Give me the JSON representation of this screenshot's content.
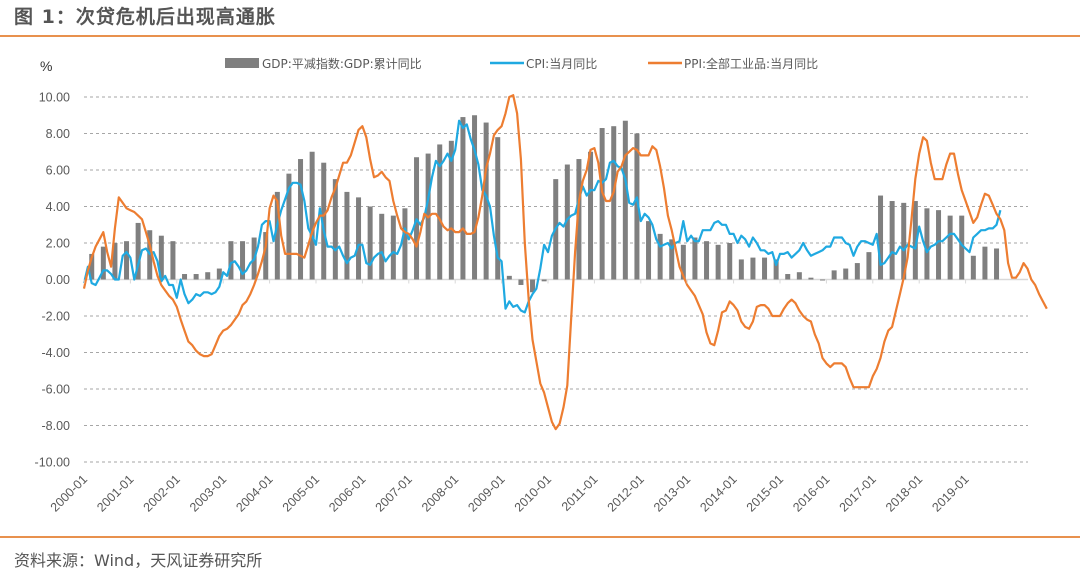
{
  "header": {
    "title": "图 1：次贷危机后出现高通胀"
  },
  "footer": {
    "source": "资料来源：Wind，天风证券研究所"
  },
  "chart_data": {
    "type": "bar+line",
    "title": "图 1：次贷危机后出现高通胀",
    "ylabel": "%",
    "xlabel": "",
    "ylim": [
      -10,
      10
    ],
    "yticks": [
      10,
      8,
      6,
      4,
      2,
      0,
      -2,
      -4,
      -6,
      -8,
      -10
    ],
    "ytick_labels": [
      "10.00",
      "8.00",
      "6.00",
      "4.00",
      "2.00",
      "0.00",
      "-2.00",
      "-4.00",
      "-6.00",
      "-8.00",
      "-10.00"
    ],
    "xtick_labels": [
      "2000-01",
      "2001-01",
      "2002-01",
      "2003-01",
      "2004-01",
      "2005-01",
      "2006-01",
      "2007-01",
      "2008-01",
      "2009-01",
      "2010-01",
      "2011-01",
      "2012-01",
      "2013-01",
      "2014-01",
      "2015-01",
      "2016-01",
      "2017-01",
      "2018-01",
      "2019-01"
    ],
    "x_range": [
      "2000-01",
      "2019-09"
    ],
    "grid": "horizontal-dashed",
    "legend_position": "top",
    "colors": {
      "gdp": "#7f7f7f",
      "cpi": "#1fa9e1",
      "ppi": "#ed7d31"
    },
    "series": [
      {
        "name": "GDP:平减指数:GDP:累计同比",
        "type": "bar",
        "frequency": "quarterly",
        "start": "2000-Q1",
        "values": [
          1.4,
          1.8,
          2.0,
          2.1,
          3.1,
          2.7,
          2.4,
          2.1,
          0.3,
          0.3,
          0.4,
          0.6,
          2.1,
          2.1,
          2.3,
          2.6,
          4.8,
          5.8,
          6.6,
          7.0,
          6.4,
          5.5,
          4.8,
          4.5,
          4.0,
          3.6,
          3.5,
          3.9,
          6.7,
          6.9,
          7.4,
          7.6,
          8.9,
          9.0,
          8.6,
          7.8,
          0.2,
          -0.3,
          -0.7,
          -0.1,
          5.5,
          6.3,
          6.6,
          7.0,
          8.3,
          8.4,
          8.7,
          8.0,
          3.2,
          2.5,
          2.2,
          1.9,
          2.3,
          2.1,
          1.9,
          2.0,
          1.1,
          1.2,
          1.2,
          1.1,
          0.3,
          0.4,
          0.1,
          0.0,
          0.5,
          0.6,
          0.9,
          1.5,
          4.6,
          4.3,
          4.2,
          4.3,
          3.9,
          3.8,
          3.5,
          3.5,
          1.3,
          1.8,
          1.7
        ]
      },
      {
        "name": "CPI:当月同比",
        "type": "line",
        "frequency": "monthly",
        "start": "2000-01",
        "values": [
          -0.2,
          0.7,
          -0.2,
          -0.3,
          0.1,
          0.5,
          0.5,
          0.3,
          0.0,
          0.0,
          1.3,
          1.5,
          1.2,
          0.0,
          0.8,
          1.6,
          1.7,
          1.4,
          1.5,
          1.0,
          -0.1,
          0.2,
          -0.3,
          -0.3,
          -1.0,
          0.0,
          -0.8,
          -1.3,
          -1.1,
          -0.8,
          -0.9,
          -0.7,
          -0.7,
          -0.8,
          -0.7,
          -0.4,
          0.4,
          0.2,
          0.9,
          1.0,
          0.7,
          0.3,
          0.5,
          0.9,
          1.1,
          1.8,
          3.0,
          3.2,
          3.2,
          2.1,
          3.0,
          3.8,
          4.4,
          5.0,
          5.3,
          5.3,
          5.2,
          4.3,
          2.8,
          2.4,
          1.9,
          3.9,
          2.7,
          1.8,
          1.8,
          1.6,
          1.8,
          1.3,
          0.9,
          1.2,
          1.3,
          1.9,
          1.9,
          0.9,
          0.8,
          1.2,
          1.4,
          1.5,
          1.0,
          1.3,
          1.5,
          1.4,
          1.9,
          2.8,
          2.2,
          2.7,
          3.3,
          3.0,
          3.4,
          4.4,
          5.6,
          6.5,
          6.2,
          6.5,
          6.9,
          6.5,
          7.1,
          8.7,
          8.3,
          8.5,
          7.7,
          7.1,
          6.3,
          4.9,
          4.6,
          4.0,
          2.4,
          1.2,
          1.0,
          -1.6,
          -1.2,
          -1.5,
          -1.4,
          -1.7,
          -1.8,
          -1.2,
          -0.8,
          -0.5,
          0.6,
          1.9,
          1.5,
          2.4,
          2.8,
          3.1,
          2.9,
          3.3,
          3.5,
          3.6,
          4.4,
          5.1,
          4.6,
          4.9,
          4.9,
          5.4,
          5.3,
          5.5,
          6.4,
          6.5,
          6.2,
          6.1,
          5.5,
          4.2,
          4.1,
          4.5,
          3.2,
          3.6,
          3.4,
          3.0,
          2.2,
          1.8,
          1.9,
          2.0,
          1.7,
          2.0,
          2.1,
          3.2,
          2.1,
          2.4,
          2.1,
          2.1,
          2.7,
          2.7,
          2.7,
          3.1,
          3.2,
          3.0,
          3.0,
          2.5,
          2.5,
          2.0,
          2.4,
          2.2,
          1.8,
          2.3,
          2.0,
          1.6,
          1.6,
          1.4,
          1.5,
          0.8,
          1.4,
          1.4,
          1.5,
          1.2,
          1.4,
          1.6,
          2.0,
          1.6,
          1.3,
          1.4,
          1.5,
          1.6,
          1.8,
          1.8,
          2.3,
          2.3,
          2.3,
          2.0,
          1.9,
          1.3,
          1.8,
          2.1,
          2.1,
          2.0,
          1.9,
          2.5,
          0.8,
          0.9,
          1.2,
          1.5,
          1.4,
          1.8,
          1.6,
          1.9,
          1.8,
          1.7,
          2.9,
          2.1,
          1.5,
          1.8,
          1.9,
          2.1,
          2.1,
          2.3,
          2.5,
          2.5,
          2.2,
          1.9,
          1.7,
          1.5,
          2.3,
          2.5,
          2.7,
          2.7,
          2.8,
          2.8,
          3.0,
          3.8
        ]
      },
      {
        "name": "PPI:全部工业品:当月同比",
        "type": "line",
        "frequency": "monthly",
        "start": "2000-01",
        "values": [
          -0.5,
          0.5,
          1.2,
          1.8,
          2.2,
          2.6,
          1.5,
          0.7,
          2.8,
          4.5,
          4.2,
          3.9,
          3.8,
          3.7,
          3.5,
          3.3,
          2.6,
          1.9,
          1.0,
          0.2,
          -0.3,
          -0.6,
          -0.9,
          -1.1,
          -1.5,
          -2.2,
          -2.8,
          -3.4,
          -3.6,
          -3.9,
          -4.1,
          -4.2,
          -4.2,
          -4.1,
          -3.6,
          -3.1,
          -2.8,
          -2.7,
          -2.5,
          -2.2,
          -1.9,
          -1.4,
          -1.2,
          -0.8,
          -0.3,
          0.3,
          1.0,
          1.8,
          3.9,
          4.6,
          4.3,
          2.4,
          1.4,
          1.4,
          1.4,
          1.4,
          1.3,
          1.2,
          1.9,
          2.6,
          3.1,
          3.5,
          3.5,
          3.8,
          4.5,
          5.0,
          5.7,
          6.4,
          6.4,
          6.8,
          7.5,
          8.2,
          8.4,
          7.8,
          6.6,
          5.6,
          5.7,
          5.9,
          5.6,
          5.4,
          4.3,
          3.5,
          2.8,
          2.6,
          2.5,
          2.2,
          1.8,
          2.6,
          3.6,
          3.4,
          3.6,
          3.6,
          3.3,
          2.9,
          2.7,
          2.8,
          2.6,
          2.6,
          2.8,
          2.5,
          2.5,
          2.6,
          3.4,
          4.6,
          6.1,
          6.9,
          7.9,
          8.2,
          8.4,
          9.1,
          10.0,
          10.1,
          9.1,
          6.6,
          2.0,
          -1.1,
          -3.3,
          -4.5,
          -5.7,
          -6.2,
          -7.0,
          -7.8,
          -8.2,
          -7.9,
          -7.0,
          -5.8,
          -2.1,
          1.5,
          4.3,
          5.4,
          6.0,
          7.1,
          7.2,
          6.4,
          4.8,
          4.3,
          4.3,
          4.8,
          5.9,
          6.2,
          6.8,
          7.0,
          7.2,
          7.1,
          6.8,
          6.8,
          6.8,
          7.3,
          7.1,
          6.2,
          5.0,
          3.5,
          2.7,
          1.7,
          0.7,
          0.2,
          -0.3,
          -0.6,
          -0.9,
          -1.4,
          -1.9,
          -2.9,
          -3.5,
          -3.6,
          -2.8,
          -1.8,
          -1.7,
          -1.2,
          -1.4,
          -1.7,
          -2.3,
          -2.6,
          -2.7,
          -2.3,
          -1.5,
          -1.4,
          -1.4,
          -1.6,
          -2.0,
          -2.0,
          -2.0,
          -1.6,
          -1.3,
          -1.1,
          -1.3,
          -1.7,
          -2.0,
          -2.2,
          -2.3,
          -3.0,
          -3.5,
          -4.3,
          -4.6,
          -4.8,
          -4.6,
          -4.6,
          -4.6,
          -4.8,
          -5.4,
          -5.9,
          -5.9,
          -5.9,
          -5.9,
          -5.9,
          -5.3,
          -4.9,
          -4.3,
          -3.4,
          -2.8,
          -2.6,
          -1.7,
          -0.8,
          0.1,
          1.2,
          3.3,
          5.5,
          6.9,
          7.8,
          7.6,
          6.4,
          5.5,
          5.5,
          5.5,
          6.3,
          6.9,
          6.9,
          5.8,
          4.9,
          4.3,
          3.7,
          3.1,
          3.4,
          4.1,
          4.7,
          4.6,
          4.1,
          3.6,
          3.3,
          2.7,
          0.9,
          0.1,
          0.1,
          0.4,
          0.9,
          0.6,
          0.0,
          -0.3,
          -0.8,
          -1.2,
          -1.6
        ]
      }
    ]
  }
}
